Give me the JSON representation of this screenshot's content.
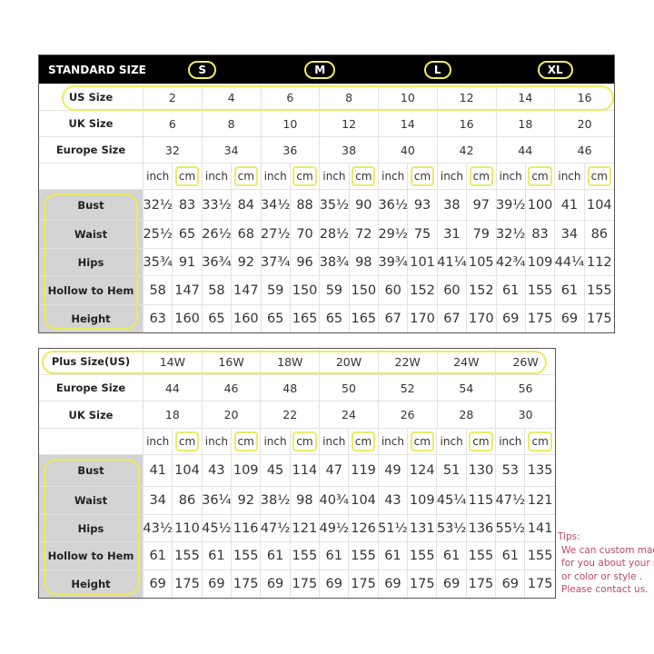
{
  "standard_table": {
    "header_label": "STANDARD SIZE",
    "size_groups": [
      "S",
      "M",
      "L",
      "XL"
    ],
    "rows": [
      {
        "label": "US Size",
        "values": [
          "2",
          "4",
          "6",
          "8",
          "10",
          "12",
          "14",
          "16"
        ]
      },
      {
        "label": "UK Size",
        "values": [
          "6",
          "8",
          "10",
          "12",
          "14",
          "16",
          "18",
          "20"
        ]
      },
      {
        "label": "Europe Size",
        "values": [
          "32",
          "34",
          "36",
          "38",
          "40",
          "42",
          "44",
          "46"
        ]
      }
    ],
    "unit_labels": [
      "inch",
      "cm"
    ],
    "measurements": [
      {
        "label": "Bust",
        "values": [
          "32½",
          "83",
          "33½",
          "84",
          "34½",
          "88",
          "35½",
          "90",
          "36½",
          "93",
          "38",
          "97",
          "39½",
          "100",
          "41",
          "104"
        ]
      },
      {
        "label": "Waist",
        "values": [
          "25½",
          "65",
          "26½",
          "68",
          "27½",
          "70",
          "28½",
          "72",
          "29½",
          "75",
          "31",
          "79",
          "32½",
          "83",
          "34",
          "86"
        ]
      },
      {
        "label": "Hips",
        "values": [
          "35¾",
          "91",
          "36¾",
          "92",
          "37¾",
          "96",
          "38¾",
          "98",
          "39¾",
          "101",
          "41¼",
          "105",
          "42¾",
          "109",
          "44¼",
          "112"
        ]
      },
      {
        "label": "Hollow to Hem",
        "values": [
          "58",
          "147",
          "58",
          "147",
          "59",
          "150",
          "59",
          "150",
          "60",
          "152",
          "60",
          "152",
          "61",
          "155",
          "61",
          "155"
        ]
      },
      {
        "label": "Height",
        "values": [
          "63",
          "160",
          "65",
          "160",
          "65",
          "165",
          "65",
          "165",
          "67",
          "170",
          "67",
          "170",
          "69",
          "175",
          "69",
          "175"
        ]
      }
    ]
  },
  "plus_table": {
    "rows": [
      {
        "label": "Plus Size(US)",
        "values": [
          "14W",
          "16W",
          "18W",
          "20W",
          "22W",
          "24W",
          "26W"
        ]
      },
      {
        "label": "Europe Size",
        "values": [
          "44",
          "46",
          "48",
          "50",
          "52",
          "54",
          "56"
        ]
      },
      {
        "label": "UK Size",
        "values": [
          "18",
          "20",
          "22",
          "24",
          "26",
          "28",
          "30"
        ]
      }
    ],
    "unit_labels": [
      "inch",
      "cm"
    ],
    "measurements": [
      {
        "label": "Bust",
        "values": [
          "41",
          "104",
          "43",
          "109",
          "45",
          "114",
          "47",
          "119",
          "49",
          "124",
          "51",
          "130",
          "53",
          "135"
        ]
      },
      {
        "label": "Waist",
        "values": [
          "34",
          "86",
          "36¼",
          "92",
          "38½",
          "98",
          "40¾",
          "104",
          "43",
          "109",
          "45¼",
          "115",
          "47½",
          "121"
        ]
      },
      {
        "label": "Hips",
        "values": [
          "43½",
          "110",
          "45½",
          "116",
          "47½",
          "121",
          "49½",
          "126",
          "51½",
          "131",
          "53½",
          "136",
          "55½",
          "141"
        ]
      },
      {
        "label": "Hollow to Hem",
        "values": [
          "61",
          "155",
          "61",
          "155",
          "61",
          "155",
          "61",
          "155",
          "61",
          "155",
          "61",
          "155",
          "61",
          "155"
        ]
      },
      {
        "label": "Height",
        "values": [
          "69",
          "175",
          "69",
          "175",
          "69",
          "175",
          "69",
          "175",
          "69",
          "175",
          "69",
          "175",
          "69",
          "175"
        ]
      }
    ]
  },
  "tips": {
    "title": "Tips:",
    "lines": [
      "We can custom made",
      "for you about your size",
      "or color or style .",
      "Please contact us."
    ]
  },
  "colors": {
    "highlight": "#eeea5c",
    "tips_text": "#c0466a",
    "header_bg": "#000000",
    "label_bg": "#d4d4d4"
  }
}
